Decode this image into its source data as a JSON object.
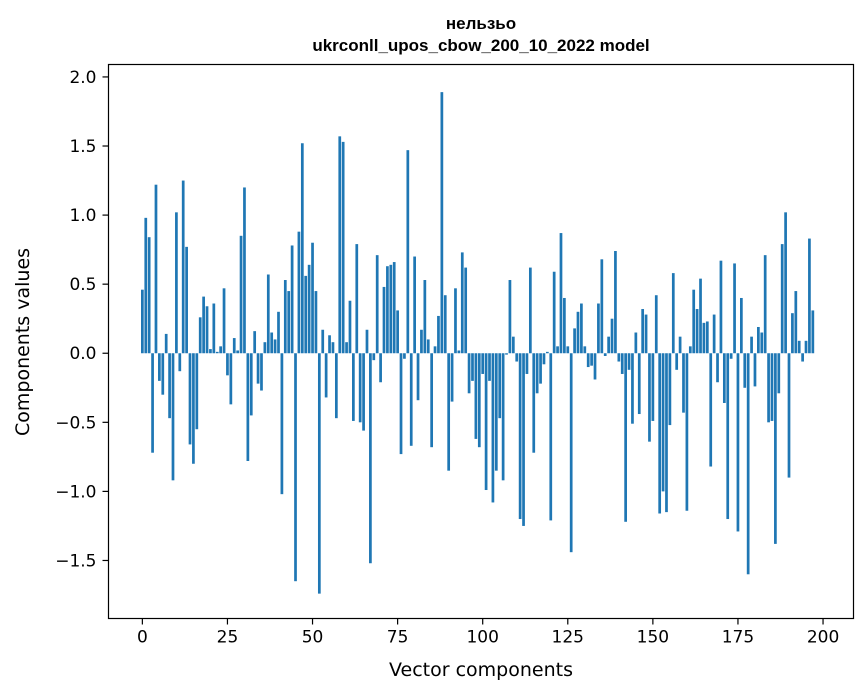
{
  "chart_data": {
    "type": "bar",
    "title": "нельзьо",
    "subtitle": "ukrconll_upos_cbow_200_10_2022 model",
    "xlabel": "Vector components",
    "ylabel": "Components values",
    "xlim": [
      -9.95,
      208.95
    ],
    "ylim": [
      -1.92,
      2.09
    ],
    "x_ticks": [
      0,
      25,
      50,
      75,
      100,
      125,
      150,
      175,
      200
    ],
    "x_tick_labels": [
      "0",
      "25",
      "50",
      "75",
      "100",
      "125",
      "150",
      "175",
      "200"
    ],
    "y_ticks": [
      -1.5,
      -1.0,
      -0.5,
      0.0,
      0.5,
      1.0,
      1.5,
      2.0
    ],
    "y_tick_labels": [
      "−1.5",
      "−1.0",
      "−0.5",
      "0.0",
      "0.5",
      "1.0",
      "1.5",
      "2.0"
    ],
    "bar_color": "#1f77b4",
    "grid": false,
    "values": [
      0.46,
      0.98,
      0.84,
      -0.72,
      1.22,
      -0.2,
      -0.3,
      0.14,
      -0.47,
      -0.92,
      1.02,
      -0.13,
      1.25,
      0.77,
      -0.66,
      -0.8,
      -0.55,
      0.26,
      0.41,
      0.34,
      0.03,
      0.36,
      0.01,
      0.05,
      0.47,
      -0.16,
      -0.37,
      0.11,
      0.02,
      0.85,
      1.2,
      -0.78,
      -0.45,
      0.16,
      -0.22,
      -0.27,
      0.08,
      0.57,
      0.15,
      0.1,
      0.3,
      -1.02,
      0.53,
      0.45,
      0.78,
      -1.65,
      0.88,
      1.52,
      0.56,
      0.64,
      0.8,
      0.45,
      -1.74,
      0.17,
      -0.32,
      0.13,
      0.08,
      -0.47,
      1.57,
      1.53,
      0.08,
      0.38,
      -0.49,
      0.79,
      -0.5,
      -0.56,
      0.17,
      -1.52,
      -0.05,
      0.71,
      -0.21,
      0.48,
      0.63,
      0.64,
      0.66,
      0.31,
      -0.73,
      -0.04,
      1.47,
      -0.67,
      0.7,
      -0.34,
      0.17,
      0.53,
      0.1,
      -0.68,
      0.05,
      0.27,
      1.89,
      0.42,
      -0.85,
      -0.35,
      0.47,
      0.02,
      0.73,
      0.62,
      -0.29,
      -0.2,
      -0.62,
      -0.68,
      -0.15,
      -0.99,
      -0.2,
      -1.08,
      -0.85,
      -0.47,
      -0.92,
      -0.01,
      0.53,
      0.12,
      -0.06,
      -1.2,
      -1.25,
      -0.15,
      0.62,
      -0.72,
      -0.29,
      -0.22,
      -0.08,
      0.01,
      -1.21,
      0.59,
      0.05,
      0.87,
      0.4,
      0.05,
      -1.44,
      0.18,
      0.3,
      0.36,
      0.05,
      -0.1,
      -0.09,
      -0.19,
      0.36,
      0.68,
      -0.02,
      0.12,
      0.25,
      0.74,
      -0.06,
      -0.15,
      -1.22,
      -0.12,
      -0.51,
      0.15,
      -0.44,
      0.32,
      0.28,
      -0.64,
      -0.49,
      0.42,
      -1.16,
      -1.0,
      -1.15,
      -0.52,
      0.58,
      -0.12,
      0.12,
      -0.43,
      -1.14,
      0.05,
      0.46,
      0.32,
      0.54,
      0.22,
      0.23,
      -0.82,
      0.28,
      -0.21,
      0.67,
      -0.36,
      -1.2,
      -0.04,
      0.65,
      -1.29,
      0.4,
      -0.25,
      -1.6,
      0.12,
      -0.24,
      0.19,
      0.15,
      0.71,
      -0.5,
      -0.49,
      -1.38,
      -0.29,
      0.79,
      1.02,
      -0.9,
      0.29,
      0.45,
      0.09,
      -0.06,
      0.09,
      0.83,
      0.31
    ]
  }
}
